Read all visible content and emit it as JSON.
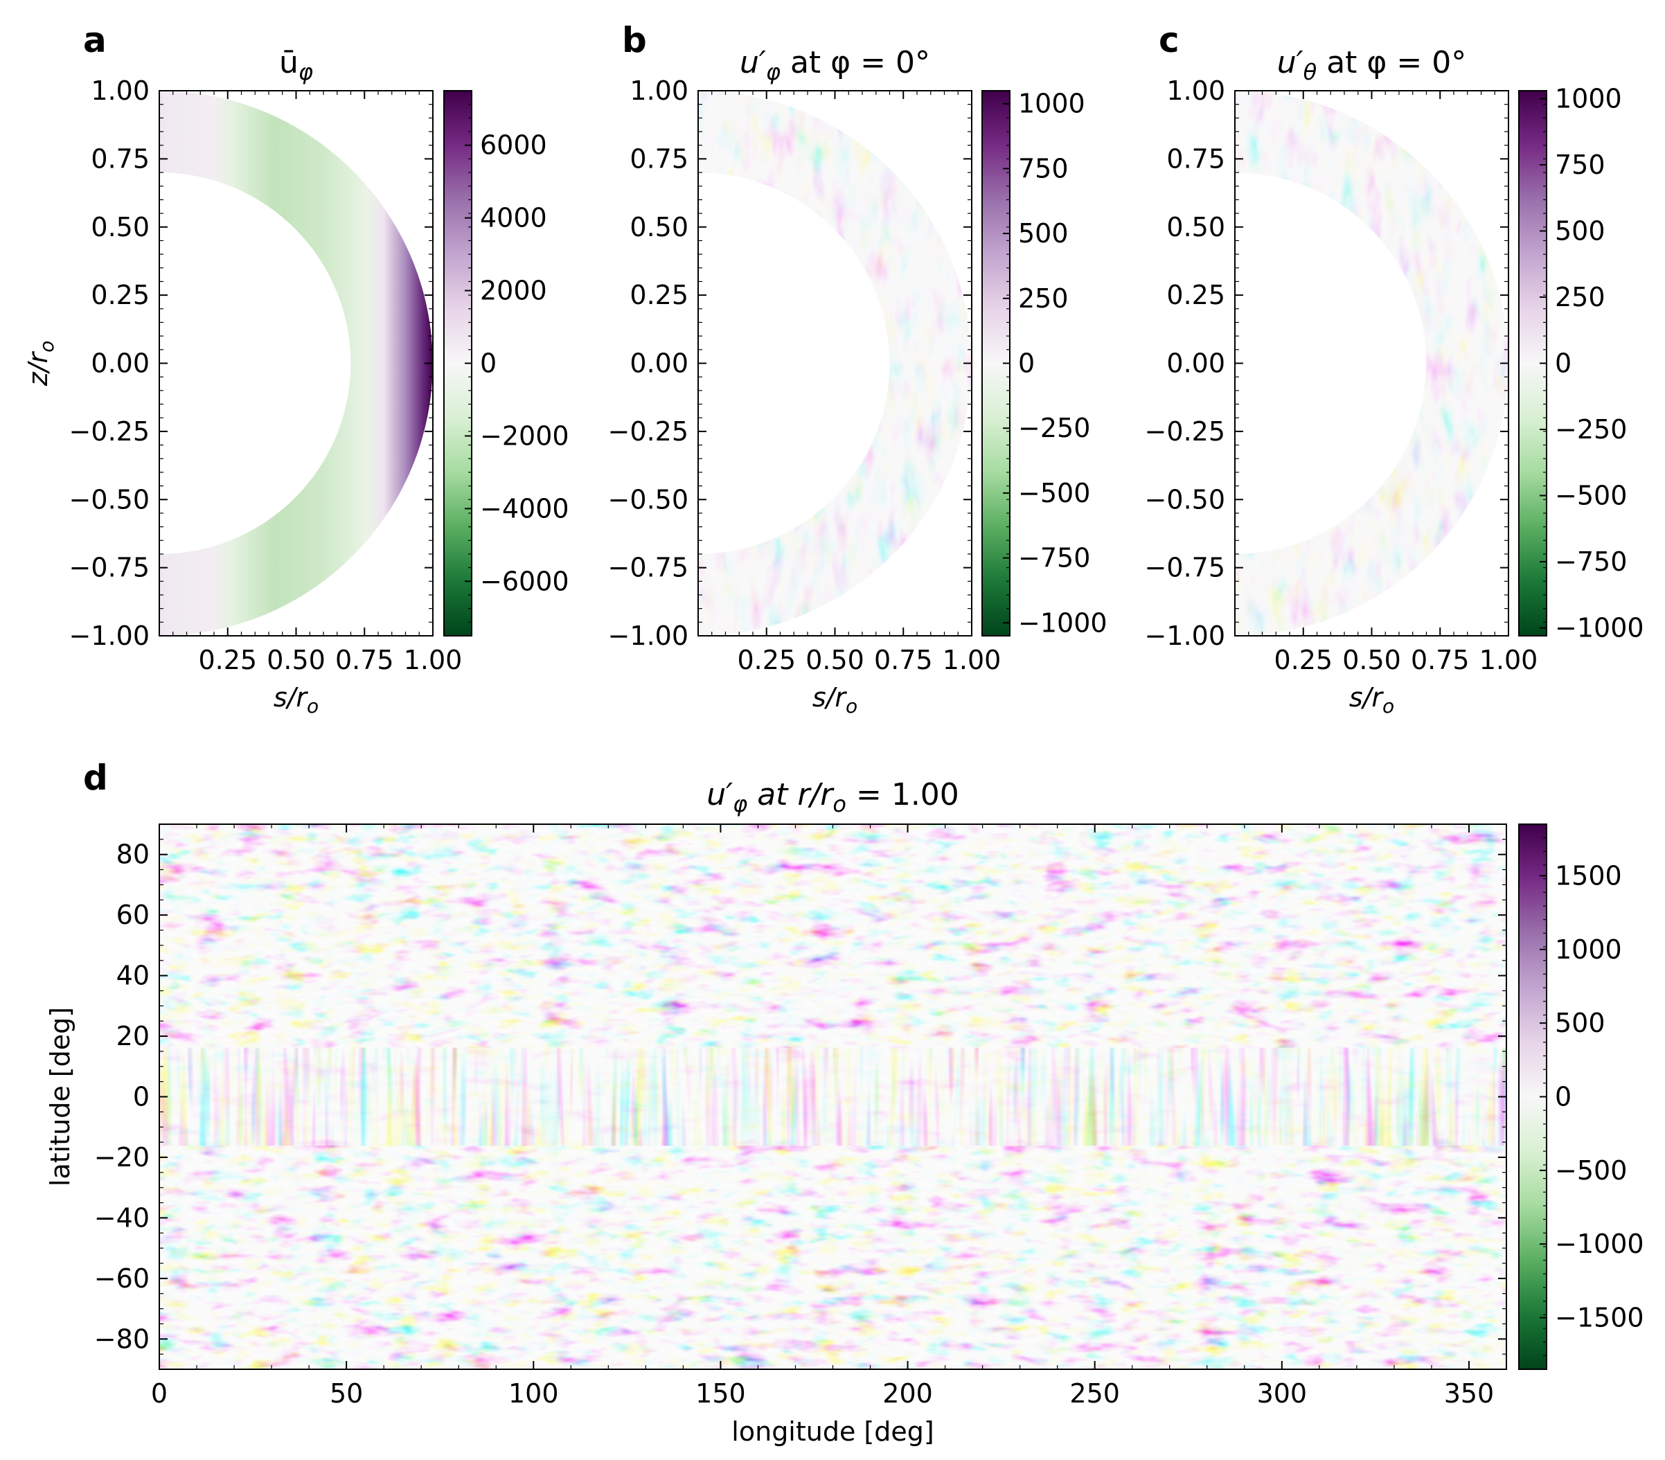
{
  "figure": {
    "colormap": {
      "name": "PRGn",
      "negative": "#00441b",
      "zero": "#f7f7f7",
      "positive": "#40004b"
    }
  },
  "chart_data": [
    {
      "id": "a",
      "type": "heatmap",
      "panel_label": "a",
      "title": "ū",
      "title_sub": "φ",
      "xlabel": "s/r",
      "xlabel_sub": "o",
      "ylabel": "z/r",
      "ylabel_sub": "o",
      "xlim": [
        0,
        1
      ],
      "ylim": [
        -1,
        1
      ],
      "inner_radius": 0.7,
      "outer_radius": 1.0,
      "x_ticks": [
        "0.25",
        "0.50",
        "0.75",
        "1.00"
      ],
      "y_ticks": [
        "1.00",
        "0.75",
        "0.50",
        "0.25",
        "0.00",
        "−0.25",
        "−0.50",
        "−0.75",
        "−1.00"
      ],
      "colorbar": {
        "range": [
          -7500,
          7500
        ],
        "ticks": [
          "6000",
          "4000",
          "2000",
          "0",
          "−2000",
          "−4000",
          "−6000"
        ]
      }
    },
    {
      "id": "b",
      "type": "heatmap",
      "panel_label": "b",
      "title": "u′",
      "title_sub": "φ",
      "title_rest": " at φ = 0°",
      "xlabel": "s/r",
      "xlabel_sub": "o",
      "xlim": [
        0,
        1
      ],
      "ylim": [
        -1,
        1
      ],
      "inner_radius": 0.7,
      "outer_radius": 1.0,
      "x_ticks": [
        "0.25",
        "0.50",
        "0.75",
        "1.00"
      ],
      "y_ticks": [
        "1.00",
        "0.75",
        "0.50",
        "0.25",
        "0.00",
        "−0.25",
        "−0.50",
        "−0.75",
        "−1.00"
      ],
      "colorbar": {
        "range": [
          -1050,
          1050
        ],
        "ticks": [
          "1000",
          "750",
          "500",
          "250",
          "0",
          "−250",
          "−500",
          "−750",
          "−1000"
        ]
      }
    },
    {
      "id": "c",
      "type": "heatmap",
      "panel_label": "c",
      "title": "u′",
      "title_sub": "θ",
      "title_rest": " at φ = 0°",
      "xlabel": "s/r",
      "xlabel_sub": "o",
      "xlim": [
        0,
        1
      ],
      "ylim": [
        -1,
        1
      ],
      "inner_radius": 0.7,
      "outer_radius": 1.0,
      "x_ticks": [
        "0.25",
        "0.50",
        "0.75",
        "1.00"
      ],
      "y_ticks": [
        "1.00",
        "0.75",
        "0.50",
        "0.25",
        "0.00",
        "−0.25",
        "−0.50",
        "−0.75",
        "−1.00"
      ],
      "colorbar": {
        "range": [
          -1030,
          1030
        ],
        "ticks": [
          "1000",
          "750",
          "500",
          "250",
          "0",
          "−250",
          "−500",
          "−750",
          "−1000"
        ]
      }
    },
    {
      "id": "d",
      "type": "heatmap",
      "panel_label": "d",
      "title": "u′",
      "title_sub": "φ",
      "title_rest": " at r/r",
      "title_rest_sub": "o",
      "title_tail": " = 1.00",
      "xlabel": "longitude [deg]",
      "ylabel": "latitude [deg]",
      "xlim": [
        0,
        360
      ],
      "ylim": [
        -90,
        90
      ],
      "x_ticks": [
        "0",
        "50",
        "100",
        "150",
        "200",
        "250",
        "300",
        "350"
      ],
      "y_ticks": [
        "80",
        "60",
        "40",
        "20",
        "0",
        "−20",
        "−40",
        "−60",
        "−80"
      ],
      "colorbar": {
        "range": [
          -1850,
          1850
        ],
        "ticks": [
          "1500",
          "1000",
          "500",
          "0",
          "−500",
          "−1000",
          "−1500"
        ]
      }
    }
  ]
}
